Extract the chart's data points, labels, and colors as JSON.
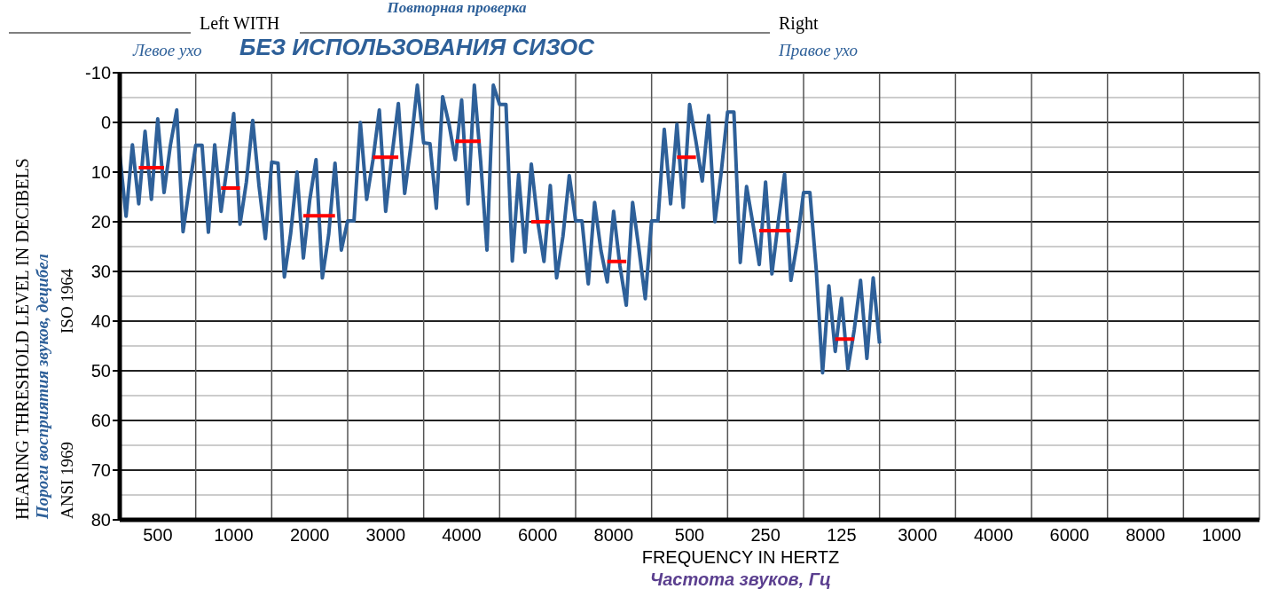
{
  "chart_data": {
    "type": "line",
    "title": "БЕЗ ИСПОЛЬЗОВАНИЯ СИЗОС",
    "xlabel": "FREQUENCY IN HERTZ",
    "ylabel": "HEARING THRESHOLD LEVEL IN DECIBELS",
    "annotations": [
      "Повторная проверка",
      "Left  WITH",
      "Right",
      "Левое ухо",
      "Правое ухо",
      "Пороги восприятия звуков, децибел",
      "ISO 1964",
      "ANSI 1969",
      "Частота звуков, Гц"
    ],
    "categories": [
      null,
      null,
      null,
      null,
      null,
      null,
      "500",
      null,
      null,
      null,
      null,
      null,
      null,
      null,
      null,
      null,
      null,
      null,
      "1000",
      null,
      null,
      null,
      null,
      null,
      null,
      null,
      null,
      null,
      null,
      null,
      "2000",
      null,
      null,
      null,
      null,
      null,
      null,
      null,
      null,
      null,
      null,
      null,
      "3000",
      null,
      null,
      null,
      null,
      null,
      null,
      null,
      null,
      null,
      null,
      null,
      "4000",
      null,
      null,
      null,
      null,
      null,
      null,
      null,
      null,
      null,
      null,
      null,
      "6000",
      null,
      null,
      null,
      null,
      null,
      null,
      null,
      null,
      null,
      null,
      null,
      "8000",
      null,
      null,
      null,
      null,
      null,
      null,
      null,
      null,
      null,
      null,
      null,
      "500",
      null,
      null,
      null,
      null,
      null,
      null,
      null,
      null,
      null,
      null,
      null,
      "250",
      null,
      null,
      null,
      null,
      null,
      null,
      null,
      null,
      null,
      null,
      null,
      "125",
      null,
      null,
      null,
      null,
      null,
      null,
      null,
      null,
      null,
      null,
      null,
      "3000",
      null,
      null,
      null,
      null,
      null,
      null,
      null,
      null,
      null,
      null,
      null,
      "4000",
      null,
      null,
      null,
      null,
      null,
      null,
      null,
      null,
      null,
      null,
      null,
      "6000",
      null,
      null,
      null,
      null,
      null,
      null,
      null,
      null,
      null,
      null,
      null,
      "8000",
      null,
      null,
      null,
      null,
      null,
      null,
      null,
      null,
      null,
      null,
      null,
      "1000",
      null,
      null,
      null,
      null,
      null
    ],
    "ylim": [
      80,
      -10
    ],
    "yticks": [
      -10,
      {
        "value": -5,
        "label": null
      },
      0,
      {
        "value": 5,
        "label": null
      },
      10,
      {
        "value": 15,
        "label": null
      },
      20,
      {
        "value": 25,
        "label": null
      },
      30,
      {
        "value": 35,
        "label": null
      },
      40,
      {
        "value": 45,
        "label": null
      },
      50,
      {
        "value": 55,
        "label": null
      },
      60,
      {
        "value": 65,
        "label": null
      },
      70,
      {
        "value": 75,
        "label": null
      },
      80
    ],
    "grid": true,
    "marker": "none",
    "line_style": "solid",
    "series": [
      {
        "color": "#2e6099",
        "values": [
          6.4,
          18.9,
          4.5,
          16.4,
          1.8,
          15.5,
          -0.7,
          14.1,
          4.6,
          -2.5,
          22.0,
          13.0,
          4.6,
          4.6,
          22.1,
          4.5,
          17.9,
          8.5,
          -1.8,
          20.5,
          12.0,
          -0.4,
          12.8,
          23.4,
          8.0,
          8.2,
          31.1,
          22.3,
          10.0,
          27.3,
          15.7,
          7.5,
          31.3,
          22.6,
          8.2,
          25.7,
          19.8,
          19.8,
          0.0,
          15.5,
          7.5,
          -2.5,
          17.9,
          6.6,
          -3.8,
          14.3,
          4.5,
          -7.5,
          4.1,
          4.3,
          17.3,
          -5.2,
          0.3,
          7.5,
          -4.5,
          16.4,
          -7.5,
          7.8,
          25.7,
          -7.5,
          -3.6,
          -3.6,
          27.9,
          10.5,
          26.1,
          8.4,
          19.8,
          28.0,
          12.7,
          31.3,
          22.9,
          10.7,
          19.8,
          19.8,
          32.5,
          16.1,
          25.8,
          32.1,
          17.9,
          28.9,
          36.8,
          16.1,
          25.5,
          35.5,
          19.8,
          19.8,
          1.4,
          16.4,
          0.4,
          17.1,
          -3.6,
          3.8,
          11.8,
          -1.4,
          20.0,
          10.0,
          -2.1,
          -2.1,
          28.2,
          12.9,
          20.4,
          28.6,
          12.0,
          30.5,
          20.1,
          10.4,
          31.8,
          24.2,
          14.1,
          14.1,
          29.6,
          50.4,
          32.9,
          46.1,
          35.4,
          49.6,
          41.8,
          31.8,
          47.5,
          31.3,
          44.5,
          null,
          null,
          null,
          null,
          null,
          null,
          null,
          null,
          null,
          null,
          null,
          null,
          null,
          null,
          null,
          null,
          null,
          null,
          null,
          null,
          null,
          null,
          null,
          null,
          null,
          null,
          null,
          null,
          null,
          null,
          null,
          null,
          null,
          null,
          null,
          null,
          null,
          null,
          null,
          null,
          null,
          null,
          null,
          null,
          null,
          null,
          null,
          null,
          null,
          null,
          null,
          null,
          null,
          null,
          null,
          null,
          null,
          null,
          null
        ]
      },
      {
        "color": "#ff0000",
        "values": [
          null,
          null,
          null,
          9.1,
          9.1,
          9.1,
          9.1,
          9.1,
          null,
          null,
          null,
          null,
          null,
          null,
          null,
          null,
          13.2,
          13.2,
          13.2,
          13.2,
          null,
          null,
          null,
          null,
          null,
          null,
          null,
          null,
          null,
          18.8,
          18.8,
          18.8,
          18.8,
          18.8,
          18.8,
          null,
          null,
          null,
          null,
          null,
          7.0,
          7.0,
          7.0,
          7.0,
          7.0,
          null,
          null,
          null,
          null,
          null,
          null,
          null,
          null,
          3.8,
          3.8,
          3.8,
          3.8,
          3.8,
          null,
          null,
          null,
          null,
          null,
          null,
          null,
          20.0,
          20.0,
          20.0,
          20.0,
          null,
          null,
          null,
          null,
          null,
          null,
          null,
          null,
          28.0,
          28.0,
          28.0,
          28.0,
          null,
          null,
          null,
          null,
          null,
          null,
          null,
          7.0,
          7.0,
          7.0,
          7.0,
          null,
          null,
          null,
          null,
          null,
          null,
          null,
          null,
          null,
          21.8,
          21.8,
          21.8,
          21.8,
          21.8,
          21.8,
          null,
          null,
          null,
          null,
          null,
          null,
          43.6,
          43.6,
          43.6,
          43.6,
          null,
          null,
          null,
          null,
          null,
          null,
          null,
          null,
          null,
          null,
          null,
          null,
          null,
          null,
          null,
          null,
          null,
          null,
          null,
          null,
          null,
          null,
          null,
          null,
          null,
          null,
          null,
          null,
          null,
          null,
          null,
          null,
          null,
          null,
          null,
          null,
          null,
          null,
          null,
          null,
          null,
          null,
          null,
          null,
          null,
          null,
          null,
          null,
          null,
          null,
          null,
          null,
          null,
          null,
          null,
          null,
          null,
          null,
          null,
          null,
          null,
          null,
          null
        ]
      }
    ]
  }
}
